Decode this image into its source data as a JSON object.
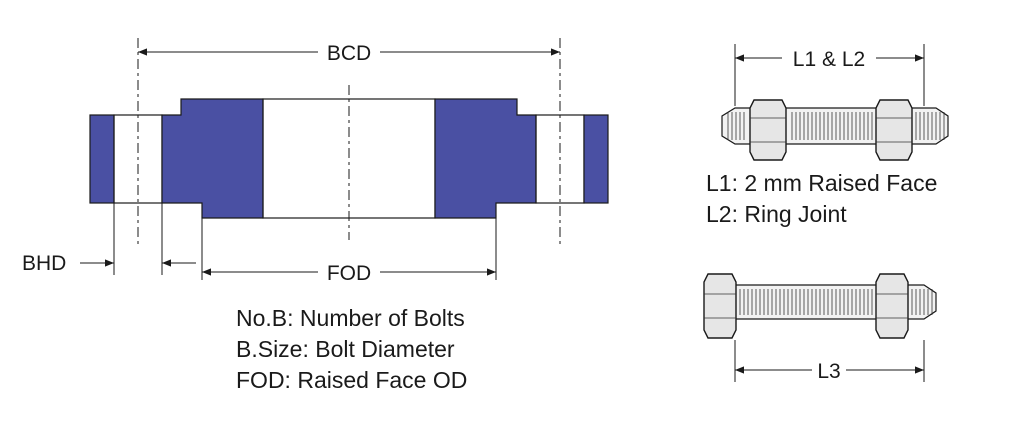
{
  "dimensions": {
    "bcd": "BCD",
    "fod": "FOD",
    "bhd": "BHD",
    "l1_l2": "L1 & L2",
    "l3": "L3"
  },
  "legend_flange": [
    "No.B: Number of Bolts",
    "B.Size: Bolt Diameter",
    "FOD: Raised Face OD"
  ],
  "legend_bolt": [
    "L1: 2 mm Raised Face",
    "L2: Ring Joint"
  ],
  "colors": {
    "flange_fill": "#4a50a3",
    "line": "#1a1a1a"
  }
}
